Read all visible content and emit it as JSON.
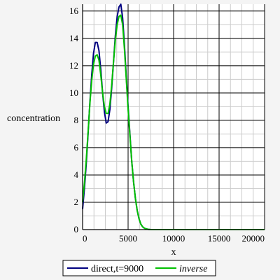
{
  "chart_data": {
    "type": "line",
    "title": "",
    "xlabel": "x",
    "ylabel": "concentration",
    "xlim": [
      0,
      20000
    ],
    "ylim": [
      0,
      16.5
    ],
    "x_ticks": [
      0,
      5000,
      10000,
      15000,
      20000
    ],
    "y_ticks": [
      0,
      2,
      4,
      6,
      8,
      10,
      12,
      14,
      16
    ],
    "grid": true,
    "legend_position": "bottom",
    "series": [
      {
        "name": "direct,t=9000",
        "color": "#000080",
        "x": [
          0,
          200,
          400,
          600,
          800,
          1000,
          1200,
          1400,
          1600,
          1800,
          2000,
          2200,
          2400,
          2600,
          2800,
          3000,
          3200,
          3400,
          3600,
          3800,
          4000,
          4200,
          4400,
          4600,
          4800,
          5000,
          5200,
          5400,
          5600,
          5800,
          6000,
          6200,
          6400,
          6600,
          6800,
          7000,
          7200,
          7500,
          8000,
          10000,
          15000,
          20000
        ],
        "y": [
          1.5,
          3.0,
          4.8,
          7.0,
          9.3,
          11.3,
          12.9,
          13.7,
          13.7,
          13.1,
          11.7,
          10.0,
          8.6,
          7.8,
          7.9,
          8.8,
          10.4,
          12.3,
          14.2,
          15.6,
          16.3,
          16.5,
          15.5,
          13.5,
          11.2,
          9.0,
          7.0,
          5.0,
          3.5,
          2.3,
          1.4,
          0.8,
          0.4,
          0.2,
          0.1,
          0.05,
          0.02,
          0,
          0,
          0,
          0,
          0
        ]
      },
      {
        "name": "inverse",
        "color": "#00c000",
        "italic": true,
        "x": [
          0,
          200,
          400,
          600,
          800,
          1000,
          1200,
          1400,
          1600,
          1800,
          2000,
          2200,
          2400,
          2600,
          2800,
          3000,
          3200,
          3400,
          3600,
          3800,
          4000,
          4200,
          4400,
          4600,
          4800,
          5000,
          5200,
          5400,
          5600,
          5800,
          6000,
          6200,
          6400,
          6600,
          6800,
          7000,
          7200,
          7500,
          8000,
          10000,
          15000,
          20000
        ],
        "y": [
          2.0,
          3.4,
          5.1,
          7.1,
          9.2,
          10.9,
          12.1,
          12.7,
          12.8,
          12.4,
          11.3,
          10.0,
          9.0,
          8.5,
          8.5,
          9.2,
          10.6,
          12.3,
          13.9,
          15.0,
          15.6,
          15.7,
          15.0,
          13.2,
          11.0,
          8.8,
          6.9,
          5.0,
          3.5,
          2.3,
          1.4,
          0.8,
          0.4,
          0.2,
          0.1,
          0.05,
          0.02,
          0,
          0,
          0,
          0,
          0
        ]
      }
    ]
  }
}
